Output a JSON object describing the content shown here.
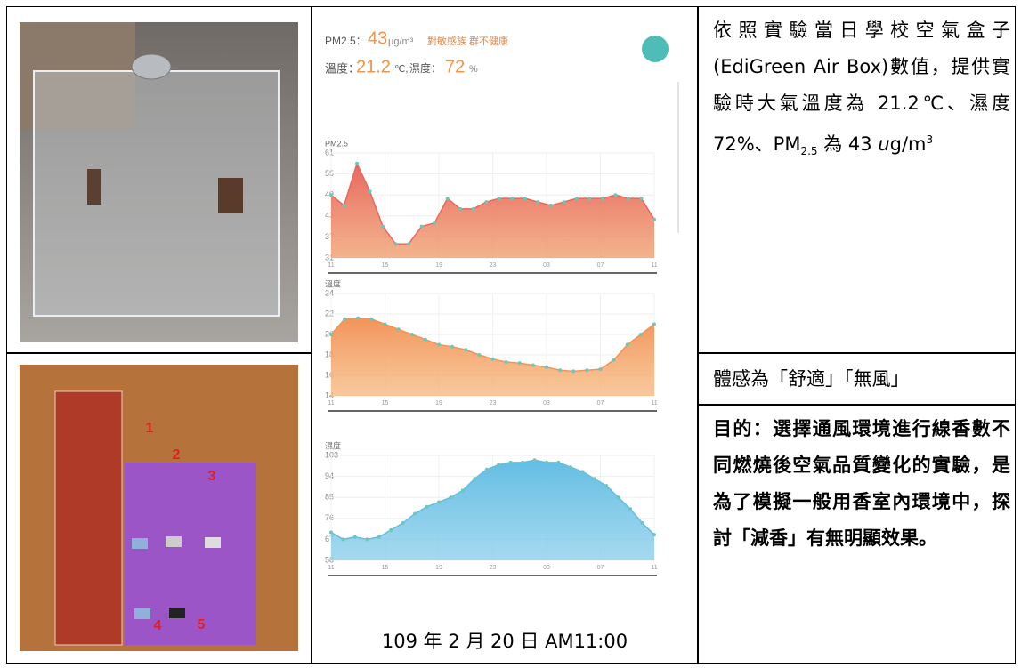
{
  "photo_labels": [
    "1",
    "2",
    "3",
    "4",
    "5"
  ],
  "screenshot": {
    "pm25_label": "PM2.5：",
    "pm25_value": "43",
    "pm25_unit": "μg/m³",
    "pm25_status": "對敏感族 群不健康",
    "temp_label": "溫度：",
    "temp_value": "21.2",
    "temp_unit": "℃,",
    "hum_label": "濕度：",
    "hum_value": "72",
    "hum_unit": "%",
    "x_labels": [
      "11",
      "15",
      "19",
      "23",
      "03",
      "07",
      "11"
    ],
    "charts": [
      {
        "type": "area",
        "title": "PM2.5",
        "color": "#e8675f",
        "color2": "#f0a070",
        "ylim": [
          31,
          61
        ],
        "yticks": [
          61,
          55,
          49,
          43,
          37,
          31
        ],
        "values": [
          49,
          46,
          58,
          50,
          40,
          35,
          35,
          40,
          41,
          48,
          45,
          45,
          47,
          48,
          48,
          48,
          47,
          46,
          47,
          48,
          48,
          48,
          49,
          48,
          48,
          42
        ]
      },
      {
        "type": "area",
        "title": "溫度",
        "color": "#f2945a",
        "color2": "#f7bb83",
        "ylim": [
          14,
          24
        ],
        "yticks": [
          24,
          22,
          20,
          18,
          16,
          14
        ],
        "values": [
          20,
          21.5,
          21.6,
          21.5,
          21,
          20.5,
          20,
          19.5,
          19,
          18.8,
          18.5,
          18,
          17.6,
          17.3,
          17.2,
          17,
          16.8,
          16.5,
          16.4,
          16.5,
          16.6,
          17.5,
          19,
          20,
          21
        ]
      },
      {
        "type": "area",
        "title": "濕度",
        "color": "#63bde3",
        "color2": "#8fd0ec",
        "ylim": [
          58,
          103
        ],
        "yticks": [
          103,
          94,
          85,
          76,
          67,
          58
        ],
        "values": [
          70,
          67,
          68,
          67,
          68,
          71,
          74,
          78,
          81,
          83,
          85,
          88,
          93,
          97,
          99,
          100,
          100,
          101,
          100,
          100,
          98,
          96,
          93,
          90,
          85,
          80,
          74,
          69
        ]
      }
    ]
  },
  "caption": "109 年 2 月 20 日  AM11:00",
  "note": {
    "before": "依照實驗當日學校空氣盒子(EdiGreen Air Box)數值，提供實驗時大氣溫度為 21.2℃、濕度 72%、PM",
    "sub": "2.5",
    "middle": " 為 43 ",
    "italic": "u",
    "unit": "g/m",
    "sup": "3"
  },
  "feeling": "體感為「舒適」「無風」",
  "purpose": "目的：選擇通風環境進行線香數不同燃燒後空氣品質變化的實驗，是為了模擬一般用香室內環境中，探討「減香」有無明顯效果。"
}
